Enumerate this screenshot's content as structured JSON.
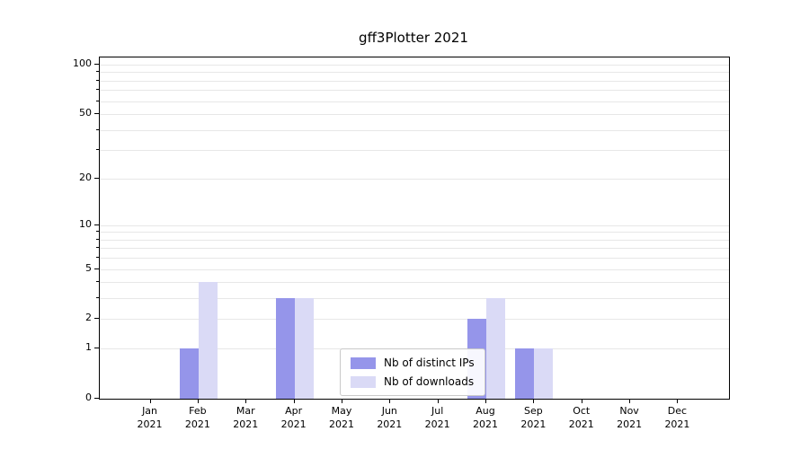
{
  "chart_data": {
    "type": "bar",
    "title": "gff3Plotter 2021",
    "categories": [
      "Jan",
      "Feb",
      "Mar",
      "Apr",
      "May",
      "Jun",
      "Jul",
      "Aug",
      "Sep",
      "Oct",
      "Nov",
      "Dec"
    ],
    "x_year": "2021",
    "series": [
      {
        "name": "Nb of distinct IPs",
        "color": "#9595ea",
        "values": [
          0,
          1,
          0,
          3,
          0,
          0,
          0,
          2,
          1,
          0,
          0,
          0
        ]
      },
      {
        "name": "Nb of downloads",
        "color": "#dadaf6",
        "values": [
          0,
          4,
          0,
          3,
          0,
          0,
          0,
          3,
          1,
          0,
          0,
          0
        ]
      }
    ],
    "yscale": "log1p",
    "yticks": [
      0,
      1,
      2,
      5,
      10,
      20,
      50,
      100
    ],
    "minor_gridlines": [
      3,
      4,
      6,
      7,
      8,
      9,
      30,
      40,
      60,
      70,
      80,
      90
    ],
    "ylim": [
      0,
      111
    ],
    "grid": true,
    "legend_position": "inside-lower-center"
  }
}
